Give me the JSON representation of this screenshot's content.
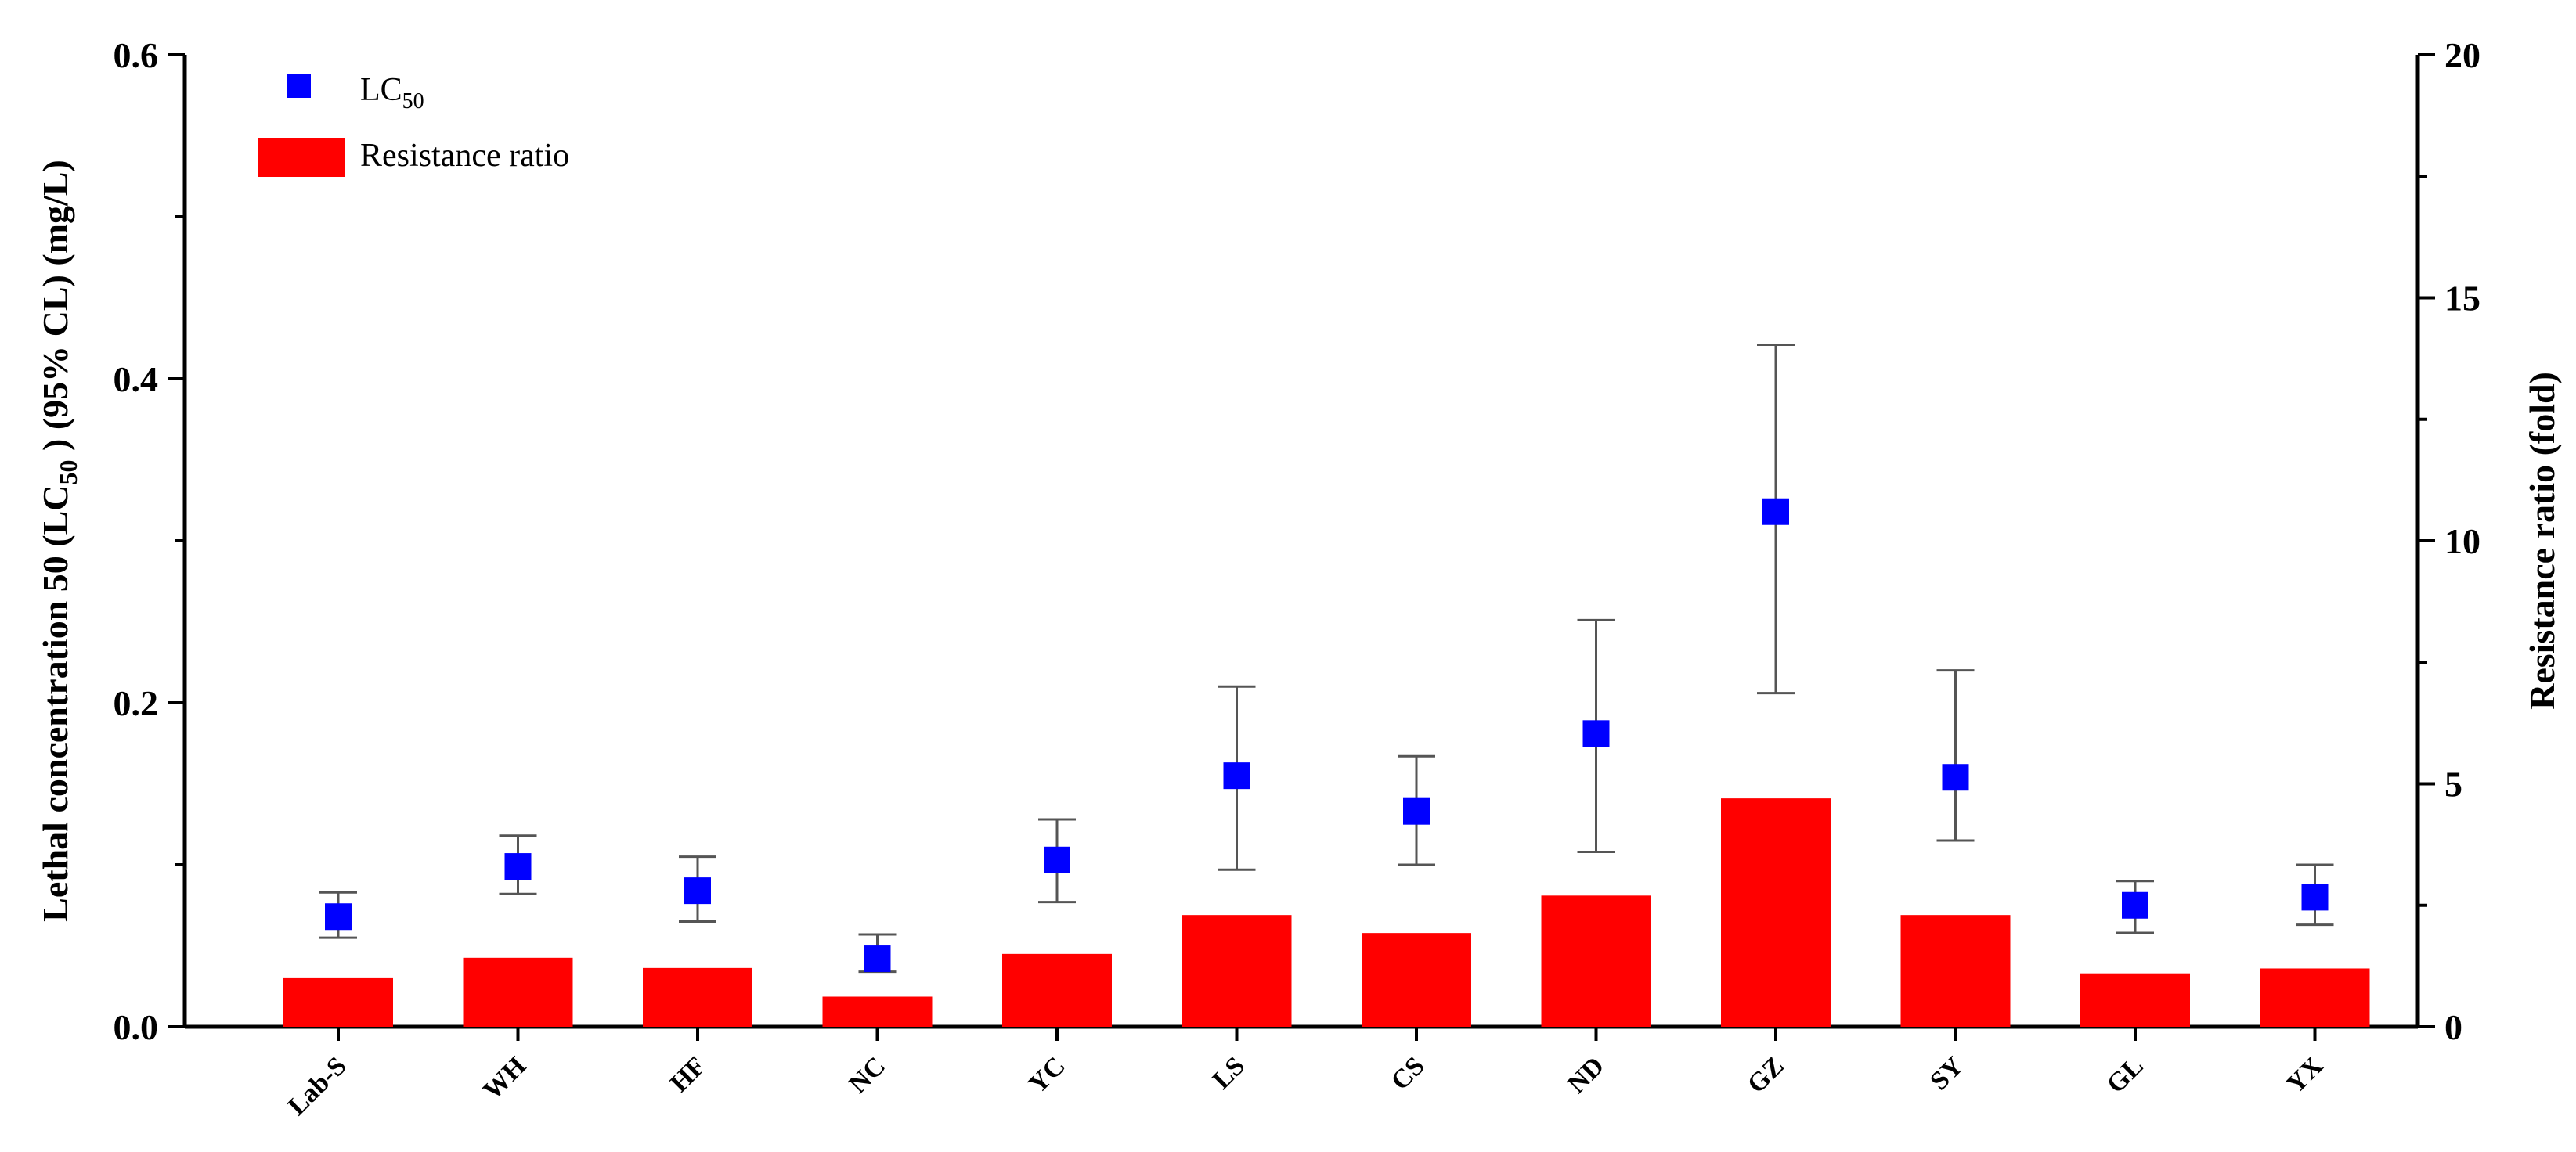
{
  "chart_data": {
    "type": "bar",
    "categories": [
      "Lab-S",
      "WH",
      "HF",
      "NC",
      "YC",
      "LS",
      "CS",
      "ND",
      "GZ",
      "SY",
      "GL",
      "YX"
    ],
    "series": [
      {
        "name": "Resistance ratio",
        "kind": "bar",
        "axis": "right",
        "color": "#ff0000",
        "values": [
          1.0,
          1.42,
          1.21,
          0.62,
          1.5,
          2.3,
          1.93,
          2.7,
          4.7,
          2.3,
          1.1,
          1.2
        ]
      },
      {
        "name": "LC50",
        "kind": "scatter",
        "axis": "left",
        "color": "#0000ff",
        "values": [
          0.068,
          0.099,
          0.084,
          0.042,
          0.103,
          0.155,
          0.133,
          0.181,
          0.318,
          0.154,
          0.075,
          0.08
        ],
        "ci_low": [
          0.055,
          0.082,
          0.065,
          0.034,
          0.077,
          0.097,
          0.1,
          0.108,
          0.206,
          0.115,
          0.058,
          0.063
        ],
        "ci_high": [
          0.083,
          0.118,
          0.105,
          0.057,
          0.128,
          0.21,
          0.167,
          0.251,
          0.421,
          0.22,
          0.09,
          0.1
        ]
      }
    ],
    "left_axis": {
      "label_main": "Lethal concentration 50 (LC",
      "label_sub": "50",
      "label_rest": " ) (95% CL) (mg/L)",
      "ylim": [
        0,
        0.6
      ],
      "ticks": [
        "0.0",
        "0.2",
        "0.4",
        "0.6"
      ]
    },
    "right_axis": {
      "label": "Resistance ratio (fold)",
      "ylim": [
        0,
        20
      ],
      "ticks": [
        "0",
        "5",
        "10",
        "15",
        "20"
      ]
    },
    "legend": {
      "position": "top-left",
      "lc50_main": "LC",
      "lc50_sub": "50",
      "ratio_label": "Resistance ratio"
    },
    "grid": false
  }
}
